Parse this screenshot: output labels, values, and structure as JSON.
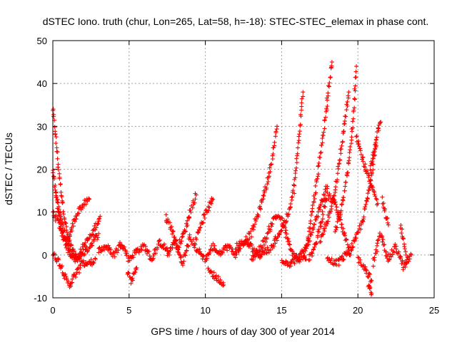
{
  "chart_data": {
    "type": "scatter",
    "title": "dSTEC Iono. truth (chur, Lon=265, Lat=58, h=-18): STEC-STEC_elemax in phase cont.",
    "xlabel": "GPS time / hours of day 300 of year 2014",
    "ylabel": "dSTEC  / TECUs",
    "xlim": [
      0,
      25
    ],
    "ylim": [
      -10,
      50
    ],
    "xticks": [
      0,
      5,
      10,
      15,
      20,
      25
    ],
    "yticks": [
      -10,
      0,
      10,
      20,
      30,
      40,
      50
    ],
    "x_tick_labels": [
      "0",
      "5",
      "10",
      "15",
      "20",
      "25"
    ],
    "y_tick_labels": [
      "-10",
      "0",
      "10",
      "20",
      "30",
      "40",
      "50"
    ],
    "grid": true,
    "marker": "+",
    "color": "#ff0000",
    "series": [
      {
        "x": [
          0.0,
          0.2,
          0.4,
          0.6,
          0.8,
          1.0,
          1.3,
          1.6,
          2.0,
          2.4,
          2.8
        ],
        "y": [
          34,
          27,
          19,
          13,
          8,
          4,
          1,
          -1,
          -2,
          -2,
          -1
        ]
      },
      {
        "x": [
          0.0,
          0.2,
          0.5,
          0.8,
          1.1,
          1.4,
          1.8,
          2.1,
          2.4
        ],
        "y": [
          20,
          14,
          7,
          3,
          4,
          8,
          11,
          12,
          13
        ]
      },
      {
        "x": [
          0.0,
          0.3,
          0.6,
          0.9,
          1.2,
          1.6,
          2.0,
          2.6,
          3.1
        ],
        "y": [
          10,
          8,
          5,
          2,
          0,
          -1,
          2,
          5,
          9
        ]
      },
      {
        "x": [
          0.0,
          0.3,
          0.6,
          0.9,
          1.1,
          1.4,
          1.8
        ],
        "y": [
          0,
          -1,
          -3,
          -6,
          -7,
          -5,
          -3
        ]
      },
      {
        "x": [
          0.2,
          0.5,
          0.8,
          1.1,
          1.4,
          1.8,
          2.2,
          2.6,
          3.0
        ],
        "y": [
          15,
          9,
          4,
          1,
          -1,
          0,
          1,
          3,
          5
        ]
      },
      {
        "x": [
          3.0,
          3.5,
          4.0,
          4.5,
          5.0,
          5.5,
          6.0,
          6.5,
          7.0,
          7.5
        ],
        "y": [
          1,
          2,
          0,
          3,
          -1,
          1,
          2,
          -1,
          3,
          1
        ]
      },
      {
        "x": [
          4.9,
          5.1,
          5.3,
          5.5
        ],
        "y": [
          -4,
          -6,
          -5,
          -3
        ]
      },
      {
        "x": [
          7.5,
          8.0,
          8.5,
          9.0,
          9.5,
          10.0,
          10.5,
          11.0
        ],
        "y": [
          0,
          3,
          -2,
          4,
          1,
          -1,
          2,
          0
        ]
      },
      {
        "x": [
          7.4,
          7.8,
          8.2,
          8.6,
          9.0,
          9.4
        ],
        "y": [
          9,
          6,
          2,
          5,
          10,
          14
        ]
      },
      {
        "x": [
          9.4,
          9.8,
          10.2,
          10.5
        ],
        "y": [
          4,
          8,
          11,
          13
        ]
      },
      {
        "x": [
          10.2,
          10.6,
          11.0,
          11.2
        ],
        "y": [
          -3,
          -5,
          -6,
          -7
        ]
      },
      {
        "x": [
          11.0,
          11.5,
          12.0,
          12.5,
          13.0,
          13.5,
          14.0,
          14.5
        ],
        "y": [
          1,
          2,
          0,
          3,
          2,
          0,
          1,
          2
        ]
      },
      {
        "x": [
          12.0,
          12.5,
          13.0,
          13.3,
          13.6,
          13.9,
          14.2,
          14.5,
          14.7
        ],
        "y": [
          2,
          3,
          5,
          8,
          11,
          15,
          19,
          25,
          30
        ]
      },
      {
        "x": [
          13.0,
          13.5,
          14.0,
          14.3,
          14.6,
          14.9,
          15.2,
          15.6,
          16.1,
          16.6
        ],
        "y": [
          -1,
          1,
          4,
          7,
          9,
          9,
          6,
          1,
          -1,
          -1
        ]
      },
      {
        "x": [
          14.5,
          15.0,
          15.5,
          15.8,
          16.0,
          16.2,
          16.4
        ],
        "y": [
          3,
          6,
          10,
          15,
          22,
          30,
          38
        ]
      },
      {
        "x": [
          15.0,
          15.5,
          16.0,
          16.5,
          17.0,
          17.5,
          18.0
        ],
        "y": [
          -1,
          -2,
          -1,
          1,
          5,
          11,
          16
        ]
      },
      {
        "x": [
          16.5,
          16.8,
          17.0,
          17.3,
          17.6,
          17.9,
          18.1,
          18.3
        ],
        "y": [
          0,
          5,
          10,
          17,
          25,
          33,
          40,
          45
        ]
      },
      {
        "x": [
          16.8,
          17.2,
          17.6,
          18.0,
          18.5,
          19.0,
          19.5
        ],
        "y": [
          -1,
          2,
          8,
          14,
          12,
          6,
          0
        ]
      },
      {
        "x": [
          17.5,
          18.0,
          18.5,
          18.8,
          19.1,
          19.4
        ],
        "y": [
          3,
          8,
          15,
          22,
          30,
          38
        ]
      },
      {
        "x": [
          18.5,
          19.0,
          19.5,
          19.7,
          19.9
        ],
        "y": [
          5,
          12,
          24,
          33,
          44
        ]
      },
      {
        "x": [
          18.0,
          18.6,
          19.2,
          19.8,
          20.3,
          20.8,
          21.2
        ],
        "y": [
          -1,
          -2,
          0,
          3,
          8,
          16,
          27
        ]
      },
      {
        "x": [
          19.9,
          20.2,
          20.5,
          20.8,
          21.0,
          21.3
        ],
        "y": [
          28,
          24,
          20,
          17,
          15,
          12
        ]
      },
      {
        "x": [
          20.0,
          20.3,
          20.6,
          20.9
        ],
        "y": [
          -1,
          -2,
          -4,
          -6
        ]
      },
      {
        "x": [
          20.8,
          21.1,
          21.3,
          21.5
        ],
        "y": [
          20,
          25,
          29,
          31
        ]
      },
      {
        "x": [
          21.0,
          21.5,
          22.0,
          22.5,
          23.0,
          23.5
        ],
        "y": [
          -2,
          5,
          -1,
          2,
          -3,
          0
        ]
      },
      {
        "x": [
          20.7,
          20.8,
          20.9
        ],
        "y": [
          -7,
          -8,
          -9
        ]
      },
      {
        "x": [
          21.6,
          21.8,
          22.0
        ],
        "y": [
          13,
          10,
          7
        ]
      },
      {
        "x": [
          22.8,
          23.0,
          23.2
        ],
        "y": [
          7,
          3,
          -2
        ]
      }
    ]
  }
}
